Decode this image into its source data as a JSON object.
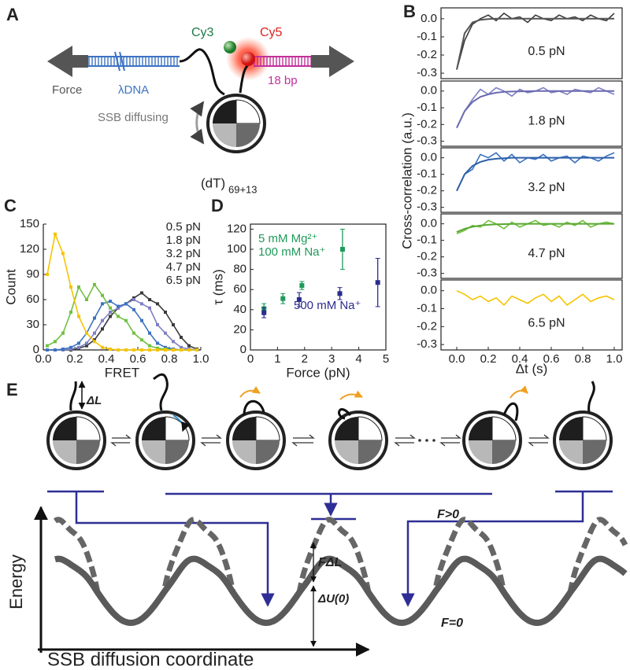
{
  "panel_a": {
    "label": "A",
    "cy3": "Cy3",
    "cy5": "Cy5",
    "force": "Force",
    "dna": "λDNA",
    "bp": "18 bp",
    "ssb": "SSB diffusing",
    "dt": "(dT)",
    "dt_sub": "69+13"
  },
  "panel_b": {
    "label": "B",
    "ylabel": "Cross-correlation (a.u.)",
    "xlabel": "Δt (s)"
  },
  "panel_e": {
    "label": "E",
    "dl": "ΔL",
    "fdl": "FΔL",
    "du": "ΔU(0)",
    "fpos": "F>0",
    "fzero": "F=0",
    "ylabel": "Energy",
    "xlabel": "SSB diffusion coordinate"
  },
  "chart_data": [
    {
      "type": "line",
      "panel": "C",
      "xlabel": "FRET",
      "ylabel": "Count",
      "legend": "upper right",
      "marker": "square",
      "x": [
        0.025,
        0.075,
        0.125,
        0.175,
        0.225,
        0.275,
        0.325,
        0.375,
        0.425,
        0.475,
        0.525,
        0.575,
        0.625,
        0.675,
        0.725,
        0.775,
        0.825,
        0.875,
        0.925,
        0.975
      ],
      "xlim": [
        0,
        1
      ],
      "ylim": [
        0,
        150
      ],
      "xticks": [
        {
          "value": 0,
          "label": "0.0"
        },
        0.2,
        0.4,
        0.6,
        0.8,
        {
          "value": 1,
          "label": "1.0"
        }
      ],
      "yticks": [
        0,
        30,
        60,
        90,
        120,
        150
      ],
      "series": [
        {
          "name": "0.5 pN",
          "color": "#3a3a3a",
          "values": [
            0,
            0,
            0,
            0,
            2,
            5,
            12,
            25,
            40,
            50,
            55,
            62,
            68,
            60,
            55,
            45,
            30,
            15,
            5,
            1
          ]
        },
        {
          "name": "1.8 pN",
          "color": "#7f7fc4",
          "values": [
            0,
            0,
            0,
            1,
            3,
            8,
            20,
            35,
            45,
            50,
            55,
            60,
            55,
            50,
            30,
            20,
            10,
            3,
            1,
            0
          ]
        },
        {
          "name": "3.2 pN",
          "color": "#3d73c2",
          "values": [
            0,
            0,
            1,
            3,
            8,
            20,
            38,
            55,
            58,
            52,
            55,
            48,
            35,
            20,
            8,
            3,
            1,
            0,
            0,
            0
          ]
        },
        {
          "name": "4.7 pN",
          "color": "#72c043",
          "values": [
            5,
            10,
            20,
            45,
            75,
            60,
            78,
            65,
            50,
            40,
            35,
            20,
            12,
            5,
            2,
            1,
            0,
            0,
            0,
            0
          ]
        },
        {
          "name": "6.5 pN",
          "color": "#f5c400",
          "values": [
            90,
            138,
            115,
            75,
            40,
            20,
            10,
            3,
            1,
            0,
            0,
            0,
            0,
            0,
            0,
            0,
            0,
            0,
            0,
            0
          ]
        }
      ]
    },
    {
      "type": "scatter",
      "panel": "D",
      "xlabel": "Force (pN)",
      "ylabel": "τ (ms)",
      "xlim": [
        0,
        5
      ],
      "ylim": [
        0,
        125
      ],
      "xticks": [
        0,
        1,
        2,
        3,
        4,
        5
      ],
      "yticks": [
        0,
        20,
        40,
        60,
        80,
        100,
        120
      ],
      "series": [
        {
          "name": "5 mM Mg²⁺ 100 mM Na⁺",
          "color": "#1f9a5a",
          "x": [
            0.5,
            1.2,
            1.9,
            3.4
          ],
          "values": [
            41,
            51,
            64,
            100
          ],
          "errors": [
            5,
            5,
            4,
            20
          ]
        },
        {
          "name": "500 mM Na⁺",
          "color": "#2b2b8f",
          "x": [
            0.5,
            1.8,
            3.3,
            4.7
          ],
          "values": [
            37,
            50,
            56,
            67
          ],
          "errors": [
            5,
            7,
            6,
            24
          ]
        }
      ]
    },
    {
      "type": "line",
      "legend": "center",
      "x": [
        0,
        0.05,
        0.1,
        0.15,
        0.2,
        0.25,
        0.3,
        0.35,
        0.4,
        0.45,
        0.5,
        0.55,
        0.6,
        0.65,
        0.7,
        0.75,
        0.8,
        0.85,
        0.9,
        0.95,
        1
      ],
      "xlim": [
        -0.1,
        1.05
      ],
      "ylim": [
        -0.33,
        0.06
      ],
      "yticks": [
        {
          "value": 0,
          "label": "0.0"
        },
        -0.1,
        -0.2,
        -0.3
      ],
      "series": [
        {
          "name": "0.5 pN",
          "color": "#3a3a3a",
          "values": [
            -0.28,
            -0.12,
            -0.03,
            0.0,
            0.02,
            -0.01,
            0.03,
            0.0,
            0.01,
            -0.02,
            0.02,
            0.0,
            -0.01,
            0.02,
            0.0,
            0.01,
            -0.01,
            0.02,
            0.0,
            -0.01,
            0.03
          ]
        },
        {
          "color": "#555555",
          "values": [
            -0.28,
            -0.08,
            -0.02,
            -0.006,
            -0.002,
            0,
            0,
            0,
            0,
            0,
            0,
            0,
            0,
            0,
            0,
            0,
            0,
            0,
            0,
            0,
            0
          ]
        }
      ]
    },
    {
      "type": "line",
      "legend": "center",
      "x": [
        0,
        0.05,
        0.1,
        0.15,
        0.2,
        0.25,
        0.3,
        0.35,
        0.4,
        0.45,
        0.5,
        0.55,
        0.6,
        0.65,
        0.7,
        0.75,
        0.8,
        0.85,
        0.9,
        0.95,
        1
      ],
      "xlim": [
        -0.1,
        1.05
      ],
      "ylim": [
        -0.33,
        0.06
      ],
      "yticks": [
        {
          "value": 0,
          "label": "0.0"
        },
        -0.1,
        -0.2,
        -0.3
      ],
      "series": [
        {
          "name": "1.8 pN",
          "color": "#7f7fc4",
          "values": [
            -0.22,
            -0.12,
            -0.05,
            0.01,
            -0.02,
            0.02,
            0.0,
            -0.03,
            0.01,
            -0.01,
            0.0,
            0.02,
            -0.01,
            0.0,
            -0.02,
            0.01,
            0.0,
            -0.01,
            0.02,
            0.0,
            -0.02
          ]
        },
        {
          "color": "#6a6ab0",
          "values": [
            -0.22,
            -0.12,
            -0.065,
            -0.035,
            -0.02,
            -0.01,
            -0.005,
            -0.003,
            -0.002,
            -0.001,
            0,
            0,
            0,
            0,
            0,
            0,
            0,
            0,
            0,
            0,
            0
          ]
        }
      ]
    },
    {
      "type": "line",
      "legend": "center",
      "x": [
        0,
        0.05,
        0.1,
        0.15,
        0.2,
        0.25,
        0.3,
        0.35,
        0.4,
        0.45,
        0.5,
        0.55,
        0.6,
        0.65,
        0.7,
        0.75,
        0.8,
        0.85,
        0.9,
        0.95,
        1
      ],
      "xlim": [
        -0.1,
        1.05
      ],
      "ylim": [
        -0.33,
        0.06
      ],
      "yticks": [
        {
          "value": 0,
          "label": "0.0"
        },
        -0.1,
        -0.2,
        -0.3
      ],
      "series": [
        {
          "name": "3.2 pN",
          "color": "#3d73c2",
          "values": [
            -0.2,
            -0.1,
            -0.07,
            0.02,
            0.0,
            0.03,
            -0.02,
            0.02,
            -0.03,
            0.0,
            -0.01,
            0.02,
            -0.02,
            0.0,
            0.01,
            -0.03,
            0.01,
            0.0,
            -0.02,
            0.01,
            0.03
          ]
        },
        {
          "color": "#2d5fa8",
          "values": [
            -0.2,
            -0.1,
            -0.05,
            -0.025,
            -0.012,
            -0.006,
            -0.003,
            0,
            0,
            0,
            0,
            0,
            0,
            0,
            0,
            0,
            0,
            0,
            0,
            0,
            0
          ]
        }
      ]
    },
    {
      "type": "line",
      "legend": "center",
      "x": [
        0,
        0.05,
        0.1,
        0.15,
        0.2,
        0.25,
        0.3,
        0.35,
        0.4,
        0.45,
        0.5,
        0.55,
        0.6,
        0.65,
        0.7,
        0.75,
        0.8,
        0.85,
        0.9,
        0.95,
        1
      ],
      "xlim": [
        -0.1,
        1.05
      ],
      "ylim": [
        -0.33,
        0.06
      ],
      "yticks": [
        {
          "value": 0,
          "label": "0.0"
        },
        -0.1,
        -0.2,
        -0.3
      ],
      "series": [
        {
          "name": "4.7 pN",
          "color": "#72c043",
          "values": [
            -0.06,
            -0.04,
            -0.01,
            -0.02,
            0.02,
            0.0,
            -0.03,
            0.01,
            -0.02,
            0.0,
            0.02,
            -0.01,
            0.0,
            -0.02,
            0.01,
            -0.01,
            0.02,
            -0.02,
            0.0,
            0.01,
            0.0
          ]
        },
        {
          "color": "#5aa832",
          "values": [
            -0.05,
            -0.03,
            -0.018,
            -0.01,
            -0.006,
            -0.003,
            -0.002,
            -0.001,
            0,
            0,
            0,
            0,
            0,
            0,
            0,
            0,
            0,
            0,
            0,
            0,
            0
          ]
        }
      ]
    },
    {
      "type": "line",
      "legend": "center",
      "x": [
        0,
        0.05,
        0.1,
        0.15,
        0.2,
        0.25,
        0.3,
        0.35,
        0.4,
        0.45,
        0.5,
        0.55,
        0.6,
        0.65,
        0.7,
        0.75,
        0.8,
        0.85,
        0.9,
        0.95,
        1
      ],
      "xlim": [
        -0.1,
        1.05
      ],
      "ylim": [
        -0.33,
        0.06
      ],
      "yticks": [
        {
          "value": 0,
          "label": "0.0"
        },
        -0.1,
        -0.2,
        -0.3
      ],
      "xticks": [
        {
          "value": 0,
          "label": "0.0"
        },
        0.2,
        0.4,
        0.6,
        0.8,
        {
          "value": 1,
          "label": "1.0"
        }
      ],
      "series": [
        {
          "name": "6.5 pN",
          "color": "#f5c400",
          "values": [
            0.0,
            -0.02,
            -0.05,
            -0.03,
            -0.06,
            -0.04,
            -0.08,
            -0.03,
            -0.05,
            -0.07,
            -0.04,
            -0.02,
            -0.06,
            -0.03,
            -0.08,
            -0.05,
            -0.02,
            -0.06,
            -0.04,
            -0.03,
            -0.05
          ]
        }
      ]
    }
  ]
}
